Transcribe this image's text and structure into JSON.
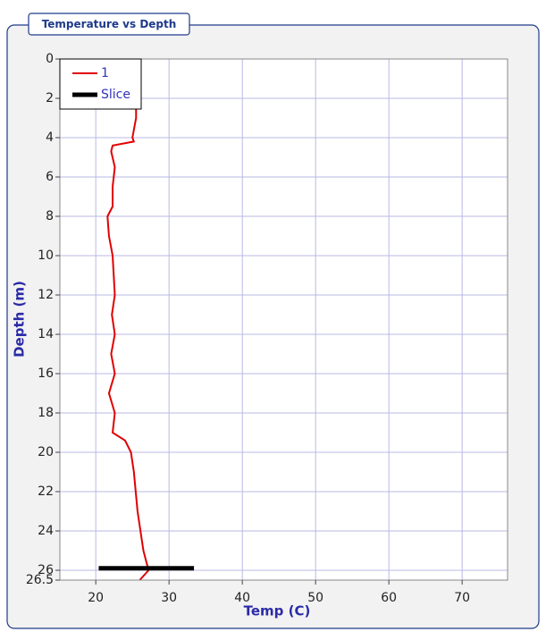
{
  "chart_data": {
    "type": "line",
    "title": "Temperature vs Depth",
    "x_label": "Temp (C)",
    "y_label": "Depth (m)",
    "xlim": [
      15.1,
      76.2
    ],
    "xticks": [
      20,
      30,
      40,
      50,
      60,
      70
    ],
    "ylim": [
      0,
      26.5
    ],
    "yticks": [
      0,
      2,
      4,
      6,
      8,
      10,
      12,
      14,
      16,
      18,
      20,
      22,
      24,
      26,
      26.5
    ],
    "y_inverted": true,
    "grid": true,
    "legend": "upper left",
    "series": [
      {
        "name": "1",
        "color": "#e00000",
        "x": [
          25.5,
          25.5,
          25.0,
          25.2,
          22.3,
          22.1,
          22.6,
          22.3,
          22.3,
          21.6,
          21.8,
          22.3,
          22.6,
          22.2,
          22.6,
          22.1,
          22.6,
          21.8,
          22.6,
          22.3,
          24.0,
          24.8,
          25.2,
          25.7,
          26.5,
          27.2,
          26.0
        ],
        "y": [
          1.5,
          3,
          4,
          4.2,
          4.4,
          4.7,
          5.5,
          6.5,
          7.5,
          8,
          9,
          10,
          12,
          13,
          14,
          15,
          16,
          17,
          18,
          19,
          19.4,
          20,
          21,
          23,
          25,
          26,
          26.5
        ]
      },
      {
        "name": "Slice",
        "color": "#000000",
        "x": [
          20.4,
          33.4
        ],
        "y": [
          25.9,
          25.9
        ]
      }
    ]
  }
}
